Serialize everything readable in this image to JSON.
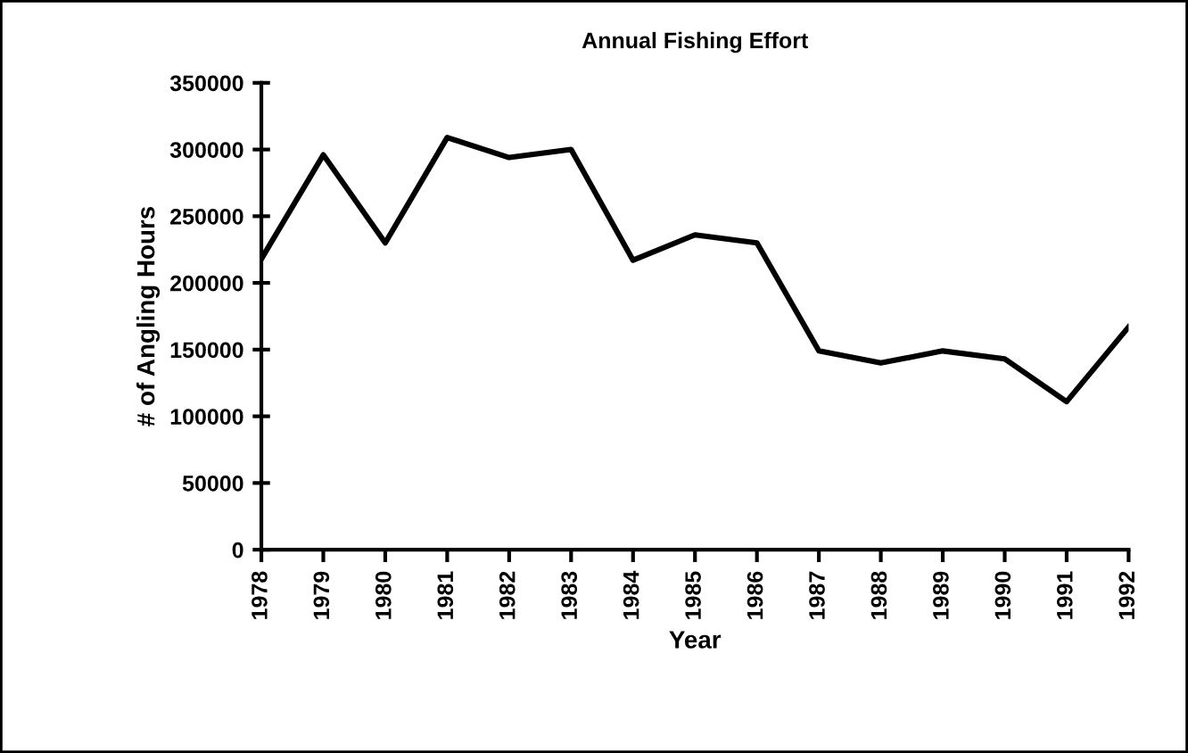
{
  "chart_data": {
    "type": "line",
    "title": "Annual Fishing Effort",
    "xlabel": "Year",
    "ylabel": "# of Angling Hours",
    "categories": [
      "1978",
      "1979",
      "1980",
      "1981",
      "1982",
      "1983",
      "1984",
      "1985",
      "1986",
      "1987",
      "1988",
      "1989",
      "1990",
      "1991",
      "1992"
    ],
    "series": [
      {
        "color": "#000000",
        "values": [
          218000,
          296000,
          230000,
          309000,
          294000,
          300000,
          217000,
          236000,
          230000,
          149000,
          140000,
          149000,
          143000,
          111000,
          167000
        ]
      }
    ],
    "ylim": [
      0,
      350000
    ],
    "yticks": [
      0,
      50000,
      100000,
      150000,
      200000,
      250000,
      300000,
      350000
    ],
    "grid": false,
    "legend": false,
    "marker": "none",
    "line_style": "solid"
  }
}
